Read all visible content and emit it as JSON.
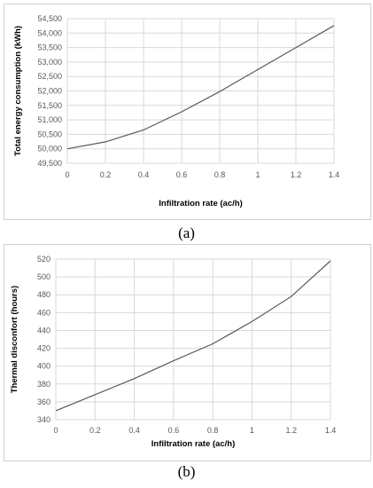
{
  "chart_data": [
    {
      "type": "line",
      "caption": "(a)",
      "xlabel": "Infiltration rate (ac/h)",
      "ylabel": "Total energy consumption (kWh)",
      "x": [
        0,
        0.2,
        0.4,
        0.6,
        0.8,
        1.0,
        1.2,
        1.4
      ],
      "y": [
        50000,
        50240,
        50650,
        51280,
        51980,
        52740,
        53500,
        54260
      ],
      "xlim": [
        0,
        1.4
      ],
      "ylim": [
        49500,
        54500
      ],
      "xticks": [
        "0",
        "0.2",
        "0.4",
        "0.6",
        "0.8",
        "1",
        "1.2",
        "1.4"
      ],
      "yticks": [
        "49,500",
        "50,000",
        "50,500",
        "51,000",
        "51,500",
        "52,000",
        "52,500",
        "53,000",
        "53,500",
        "54,000",
        "54,500"
      ],
      "ytick_values": [
        49500,
        50000,
        50500,
        51000,
        51500,
        52000,
        52500,
        53000,
        53500,
        54000,
        54500
      ],
      "grid": true,
      "line_color": "#595959"
    },
    {
      "type": "line",
      "caption": "(b)",
      "xlabel": "Infiltration rate (ac/h)",
      "ylabel": "Thermal disconfort (hours)",
      "x": [
        0,
        0.2,
        0.4,
        0.6,
        0.8,
        1.0,
        1.2,
        1.4
      ],
      "y": [
        350,
        368,
        386,
        406,
        425,
        450,
        478,
        518
      ],
      "xlim": [
        0,
        1.4
      ],
      "ylim": [
        340,
        520
      ],
      "xticks": [
        "0",
        "0.2",
        "0.4",
        "0.6",
        "0.8",
        "1",
        "1.2",
        "1.4"
      ],
      "yticks": [
        "340",
        "360",
        "380",
        "400",
        "420",
        "440",
        "460",
        "480",
        "500",
        "520"
      ],
      "ytick_values": [
        340,
        360,
        380,
        400,
        420,
        440,
        460,
        480,
        500,
        520
      ],
      "grid": true,
      "line_color": "#595959"
    }
  ]
}
